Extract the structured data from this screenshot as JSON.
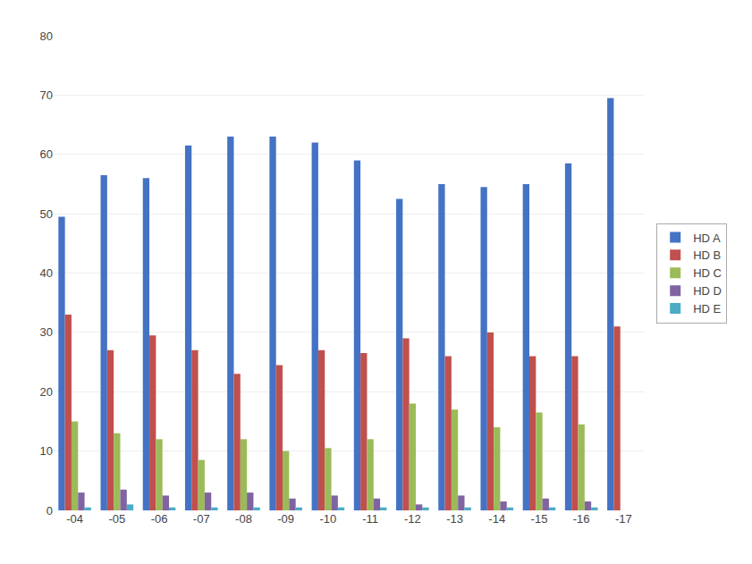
{
  "chart_data": {
    "type": "bar",
    "categories": [
      "-04",
      "-05",
      "-06",
      "-07",
      "-08",
      "-09",
      "-10",
      "-11",
      "-12",
      "-13",
      "-14",
      "-15",
      "-16",
      "-17"
    ],
    "series": [
      {
        "name": "HD A",
        "color": "#4472C4",
        "values": [
          49.5,
          56.5,
          56.0,
          61.5,
          63.0,
          63.0,
          62.0,
          59.0,
          52.5,
          55.0,
          54.5,
          55.0,
          58.5,
          69.5
        ]
      },
      {
        "name": "HD B",
        "color": "#C0504D",
        "values": [
          33.0,
          27.0,
          29.5,
          27.0,
          23.0,
          24.5,
          27.0,
          26.5,
          29.0,
          26.0,
          30.0,
          26.0,
          26.0,
          31.0
        ]
      },
      {
        "name": "HD C",
        "color": "#9BBB59",
        "values": [
          15.0,
          13.0,
          12.0,
          8.5,
          12.0,
          10.0,
          10.5,
          12.0,
          18.0,
          17.0,
          14.0,
          16.5,
          14.5,
          0.0
        ]
      },
      {
        "name": "HD D",
        "color": "#8064A2",
        "values": [
          3.0,
          3.5,
          2.5,
          3.0,
          3.0,
          2.0,
          2.5,
          2.0,
          1.0,
          2.5,
          1.5,
          2.0,
          1.5,
          0.0
        ]
      },
      {
        "name": "HD E",
        "color": "#4BACC6",
        "values": [
          0.5,
          1.0,
          0.5,
          0.5,
          0.5,
          0.5,
          0.5,
          0.5,
          0.5,
          0.5,
          0.5,
          0.5,
          0.5,
          0.0
        ]
      }
    ],
    "ylim": [
      0,
      80
    ],
    "yticks": [
      0,
      10,
      20,
      30,
      40,
      50,
      60,
      70,
      80
    ],
    "grid": true,
    "legend": "right"
  }
}
